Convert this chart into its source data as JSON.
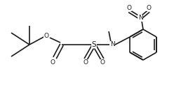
{
  "bg_color": "#ffffff",
  "line_color": "#1a1a1a",
  "line_width": 1.2,
  "font_size": 6.5,
  "figsize": [
    2.48,
    1.29
  ],
  "dpi": 100,
  "xlim": [
    0,
    248
  ],
  "ylim": [
    0,
    129
  ]
}
